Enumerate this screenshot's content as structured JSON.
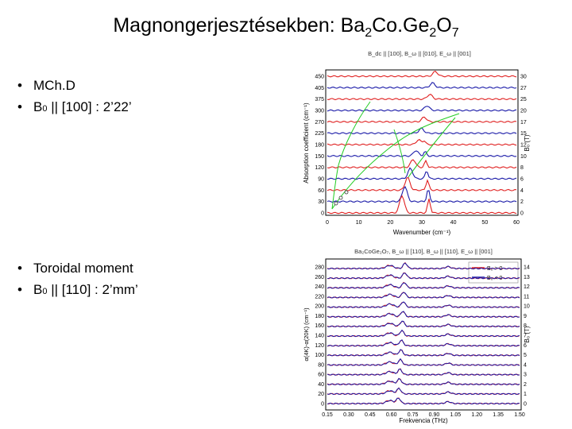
{
  "title": {
    "prefix": "Magnongerjesztésekben: Ba",
    "s1": "2",
    "mid1": "Co.Ge",
    "s2": "2",
    "mid2": "O",
    "s3": "7"
  },
  "bullets_top": [
    {
      "text": "MCh.D"
    },
    {
      "pre": "B",
      "sub": "0",
      "post": " || [100] : 2’22’"
    }
  ],
  "bullets_bottom": [
    {
      "text": "Toroidal moment"
    },
    {
      "pre": "B",
      "sub": "0",
      "post": " || [110] : 2’mm’"
    }
  ],
  "fig1": {
    "header": "B_dc || [100], B_ω || [010], E_ω || [001]",
    "ylabel": "Absorption coefficient (cm⁻¹)",
    "xlabel": "Wavenumber (cm⁻¹)",
    "rlabel": "B₀ (T)",
    "xticks": [
      "0",
      "10",
      "20",
      "30",
      "40",
      "50",
      "60"
    ],
    "left_ticks": [
      "450",
      "405",
      "375",
      "300",
      "270",
      "225",
      "180",
      "150",
      "120",
      "90",
      "60",
      "30",
      "0"
    ],
    "right_ticks": [
      "30",
      "27",
      "25",
      "20",
      "17",
      "15",
      "12",
      "10",
      "8",
      "6",
      "4",
      "2",
      "0"
    ]
  },
  "fig2": {
    "header": "Ba₂CoGe₂O₇, B_ω || [110], B_ω || [110], E_ω || [001]",
    "ylabel": "α(4K)-α(20K) (cm⁻¹)",
    "xlabel": "Frekvencia (THz)",
    "rlabel": "B₀ (T)",
    "legend": [
      "B₀ > 0",
      "B₀ < 0"
    ],
    "xticks": [
      "0.15",
      "0.30",
      "0.45",
      "0.60",
      "0.75",
      "0.90",
      "1.05",
      "1.20",
      "1.35",
      "1.50"
    ],
    "left_ticks": [
      "280",
      "260",
      "240",
      "220",
      "200",
      "180",
      "160",
      "140",
      "120",
      "100",
      "80",
      "60",
      "40",
      "20",
      "0"
    ],
    "right_ticks": [
      "14",
      "13",
      "12",
      "11",
      "10",
      "9",
      "8",
      "7",
      "6",
      "5",
      "4",
      "3",
      "2",
      "1",
      "0"
    ]
  },
  "colors": {
    "red": "#e02020",
    "blue": "#1a1aa8",
    "green": "#22cc22",
    "black": "#000000"
  }
}
